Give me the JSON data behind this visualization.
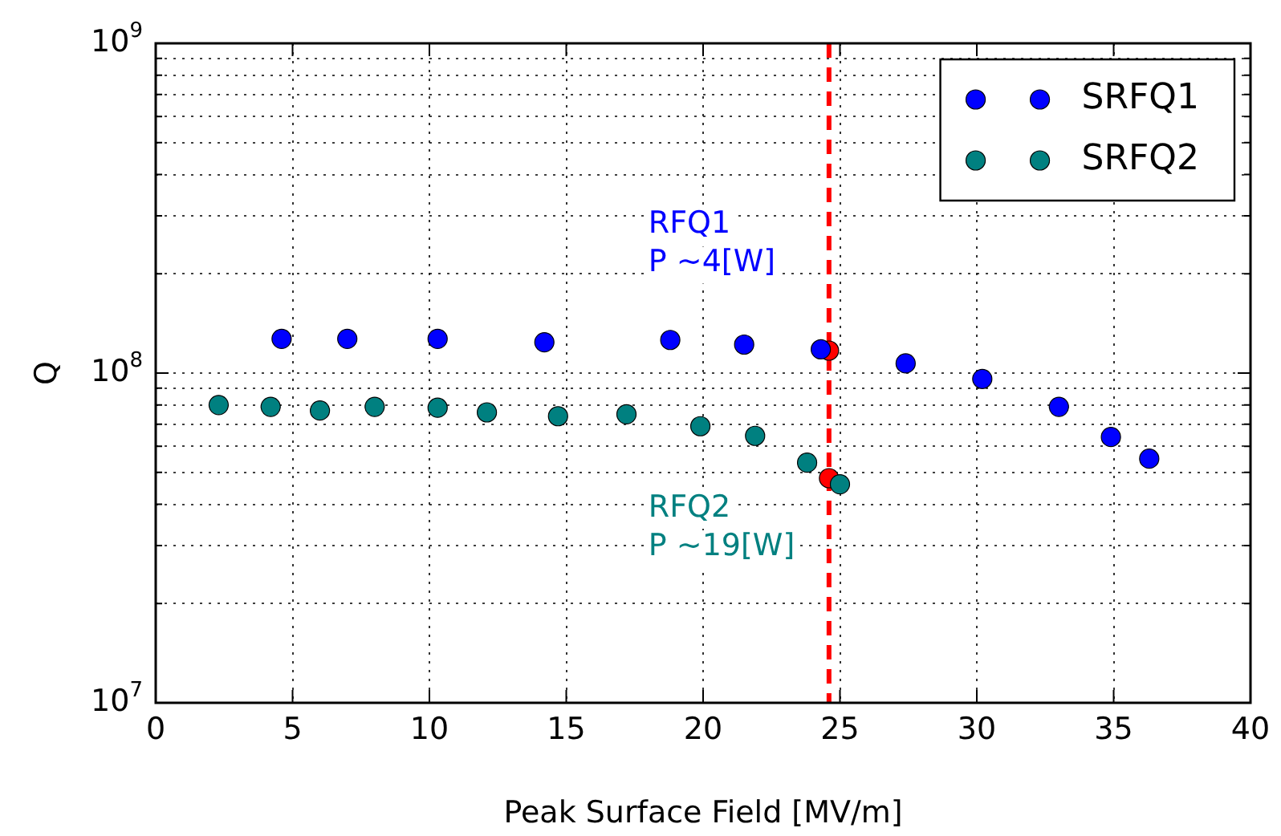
{
  "chart_data": {
    "type": "scatter",
    "xlabel": "Peak Surface Field [MV/m]",
    "ylabel": "Q",
    "log": "y",
    "grid": true,
    "legend": "top right",
    "marker": "circle",
    "xlim": [
      0,
      40
    ],
    "xticks": [
      0,
      5,
      10,
      15,
      20,
      25,
      30,
      35,
      40
    ],
    "ylim": [
      10000000,
      1000000000
    ],
    "yticks": [
      {
        "value": 10000000,
        "label": "10$^{7}$"
      },
      {
        "value": 20000000,
        "label": null
      },
      {
        "value": 30000000,
        "label": null
      },
      {
        "value": 40000000,
        "label": null
      },
      {
        "value": 50000000,
        "label": null
      },
      {
        "value": 60000000,
        "label": null
      },
      {
        "value": 70000000,
        "label": null
      },
      {
        "value": 80000000,
        "label": null
      },
      {
        "value": 90000000,
        "label": null
      },
      {
        "value": 100000000,
        "label": "10$^{8}$"
      },
      {
        "value": 200000000,
        "label": null
      },
      {
        "value": 300000000,
        "label": null
      },
      {
        "value": 400000000,
        "label": null
      },
      {
        "value": 500000000,
        "label": null
      },
      {
        "value": 600000000,
        "label": null
      },
      {
        "value": 700000000,
        "label": null
      },
      {
        "value": 800000000,
        "label": null
      },
      {
        "value": 900000000,
        "label": null
      },
      {
        "value": 1000000000,
        "label": "10$^{9}$"
      }
    ],
    "series": [
      {
        "name": "SRFQ1",
        "color": "#0000ff",
        "x": [
          4.6,
          7.0,
          10.3,
          14.2,
          18.8,
          21.5,
          24.3,
          27.4,
          30.2,
          33.0,
          34.9,
          36.3
        ],
        "values": [
          127000000,
          127000000,
          127000000,
          124000000,
          126000000,
          122000000,
          118000000,
          107000000,
          96000000,
          79000000,
          64000000,
          55000000
        ]
      },
      {
        "name": "SRFQ2",
        "color": "#008080",
        "x": [
          2.3,
          4.2,
          6.0,
          8.0,
          10.3,
          12.1,
          14.7,
          17.2,
          19.9,
          21.9,
          23.8,
          25.0
        ],
        "values": [
          80000000,
          79000000,
          77000000,
          79000000,
          78500000,
          76000000,
          74000000,
          75000000,
          69000000,
          64500000,
          53500000,
          46000000
        ]
      },
      {
        "color": "#ff0000",
        "x": [
          24.6,
          24.6
        ],
        "values": [
          117000000,
          48000000
        ]
      }
    ],
    "ref_lines": [
      {
        "axis": "x",
        "value": 24.6,
        "color": "#ff0000",
        "line_style": "dashed"
      }
    ],
    "annotations": [
      "RFQ1\nP ~4[W]",
      "RFQ2\nP ~19[W]"
    ]
  }
}
